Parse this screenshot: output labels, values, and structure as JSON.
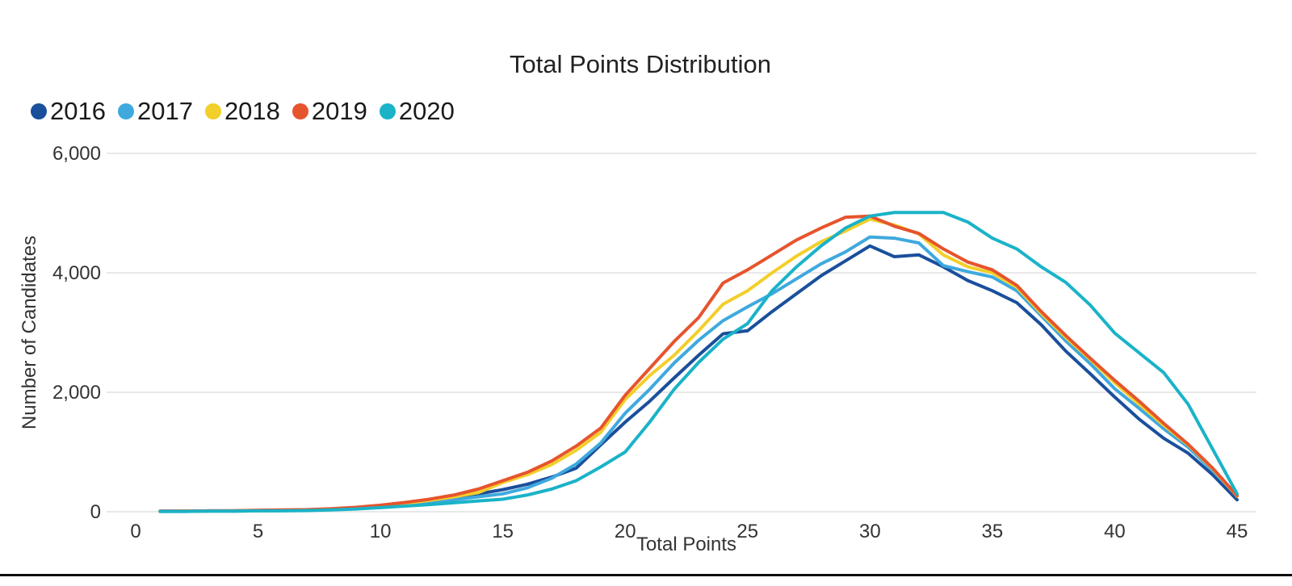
{
  "page": {
    "title": "Total Points Distribution"
  },
  "chart_data": {
    "type": "line",
    "title": "Total Points Distribution",
    "xlabel": "Total Points",
    "ylabel": "Number of Candidates",
    "xlim": [
      0,
      45
    ],
    "ylim": [
      0,
      6000
    ],
    "grid": "horizontal-only",
    "gridline_color": "#e8e8e8",
    "legend_position": "top-left",
    "x": [
      1,
      2,
      3,
      4,
      5,
      6,
      7,
      8,
      9,
      10,
      11,
      12,
      13,
      14,
      15,
      16,
      17,
      18,
      19,
      20,
      21,
      22,
      23,
      24,
      25,
      26,
      27,
      28,
      29,
      30,
      31,
      32,
      33,
      34,
      35,
      36,
      37,
      38,
      39,
      40,
      41,
      42,
      43,
      44,
      45
    ],
    "xticks": [
      0,
      5,
      10,
      15,
      20,
      25,
      30,
      35,
      40,
      45
    ],
    "yticks": [
      {
        "value": 0,
        "label": "0"
      },
      {
        "value": 2000,
        "label": "2,000"
      },
      {
        "value": 4000,
        "label": "4,000"
      },
      {
        "value": 6000,
        "label": "6,000"
      }
    ],
    "series": [
      {
        "name": "2016",
        "color": "#1a4f9c",
        "values": [
          10,
          10,
          15,
          15,
          20,
          25,
          30,
          40,
          60,
          90,
          130,
          180,
          240,
          300,
          370,
          460,
          580,
          730,
          1120,
          1500,
          1850,
          2240,
          2620,
          2980,
          3030,
          3350,
          3650,
          3950,
          4200,
          4450,
          4270,
          4300,
          4100,
          3870,
          3700,
          3500,
          3130,
          2690,
          2310,
          1920,
          1550,
          1230,
          980,
          620,
          200
        ]
      },
      {
        "name": "2017",
        "color": "#3fa9de",
        "values": [
          5,
          5,
          10,
          10,
          15,
          20,
          25,
          35,
          50,
          75,
          110,
          150,
          200,
          250,
          300,
          400,
          560,
          800,
          1150,
          1650,
          2050,
          2490,
          2870,
          3200,
          3430,
          3650,
          3900,
          4150,
          4350,
          4600,
          4580,
          4500,
          4120,
          4020,
          3930,
          3700,
          3280,
          2860,
          2480,
          2060,
          1730,
          1390,
          1080,
          690,
          270
        ]
      },
      {
        "name": "2018",
        "color": "#f2cf2a",
        "values": [
          5,
          10,
          10,
          15,
          15,
          20,
          30,
          40,
          60,
          100,
          140,
          190,
          250,
          320,
          490,
          620,
          790,
          1030,
          1330,
          1880,
          2280,
          2620,
          3030,
          3475,
          3700,
          4000,
          4280,
          4520,
          4700,
          4900,
          4800,
          4650,
          4300,
          4100,
          4000,
          3760,
          3320,
          2920,
          2550,
          2160,
          1800,
          1450,
          1120,
          720,
          260
        ]
      },
      {
        "name": "2019",
        "color": "#e6542d",
        "values": [
          10,
          10,
          15,
          15,
          25,
          30,
          35,
          50,
          75,
          110,
          155,
          210,
          280,
          380,
          520,
          660,
          850,
          1100,
          1400,
          1950,
          2400,
          2850,
          3250,
          3830,
          4050,
          4300,
          4550,
          4750,
          4930,
          4950,
          4780,
          4660,
          4400,
          4180,
          4050,
          3790,
          3350,
          2950,
          2570,
          2200,
          1850,
          1480,
          1130,
          730,
          270
        ]
      },
      {
        "name": "2020",
        "color": "#1ab3c8",
        "values": [
          5,
          5,
          10,
          10,
          15,
          15,
          20,
          30,
          45,
          70,
          95,
          120,
          150,
          180,
          210,
          280,
          380,
          520,
          750,
          1000,
          1500,
          2050,
          2500,
          2890,
          3150,
          3700,
          4100,
          4450,
          4750,
          4950,
          5010,
          5010,
          5010,
          4850,
          4580,
          4400,
          4100,
          3840,
          3460,
          2990,
          2660,
          2330,
          1800,
          1050,
          300
        ]
      }
    ]
  }
}
